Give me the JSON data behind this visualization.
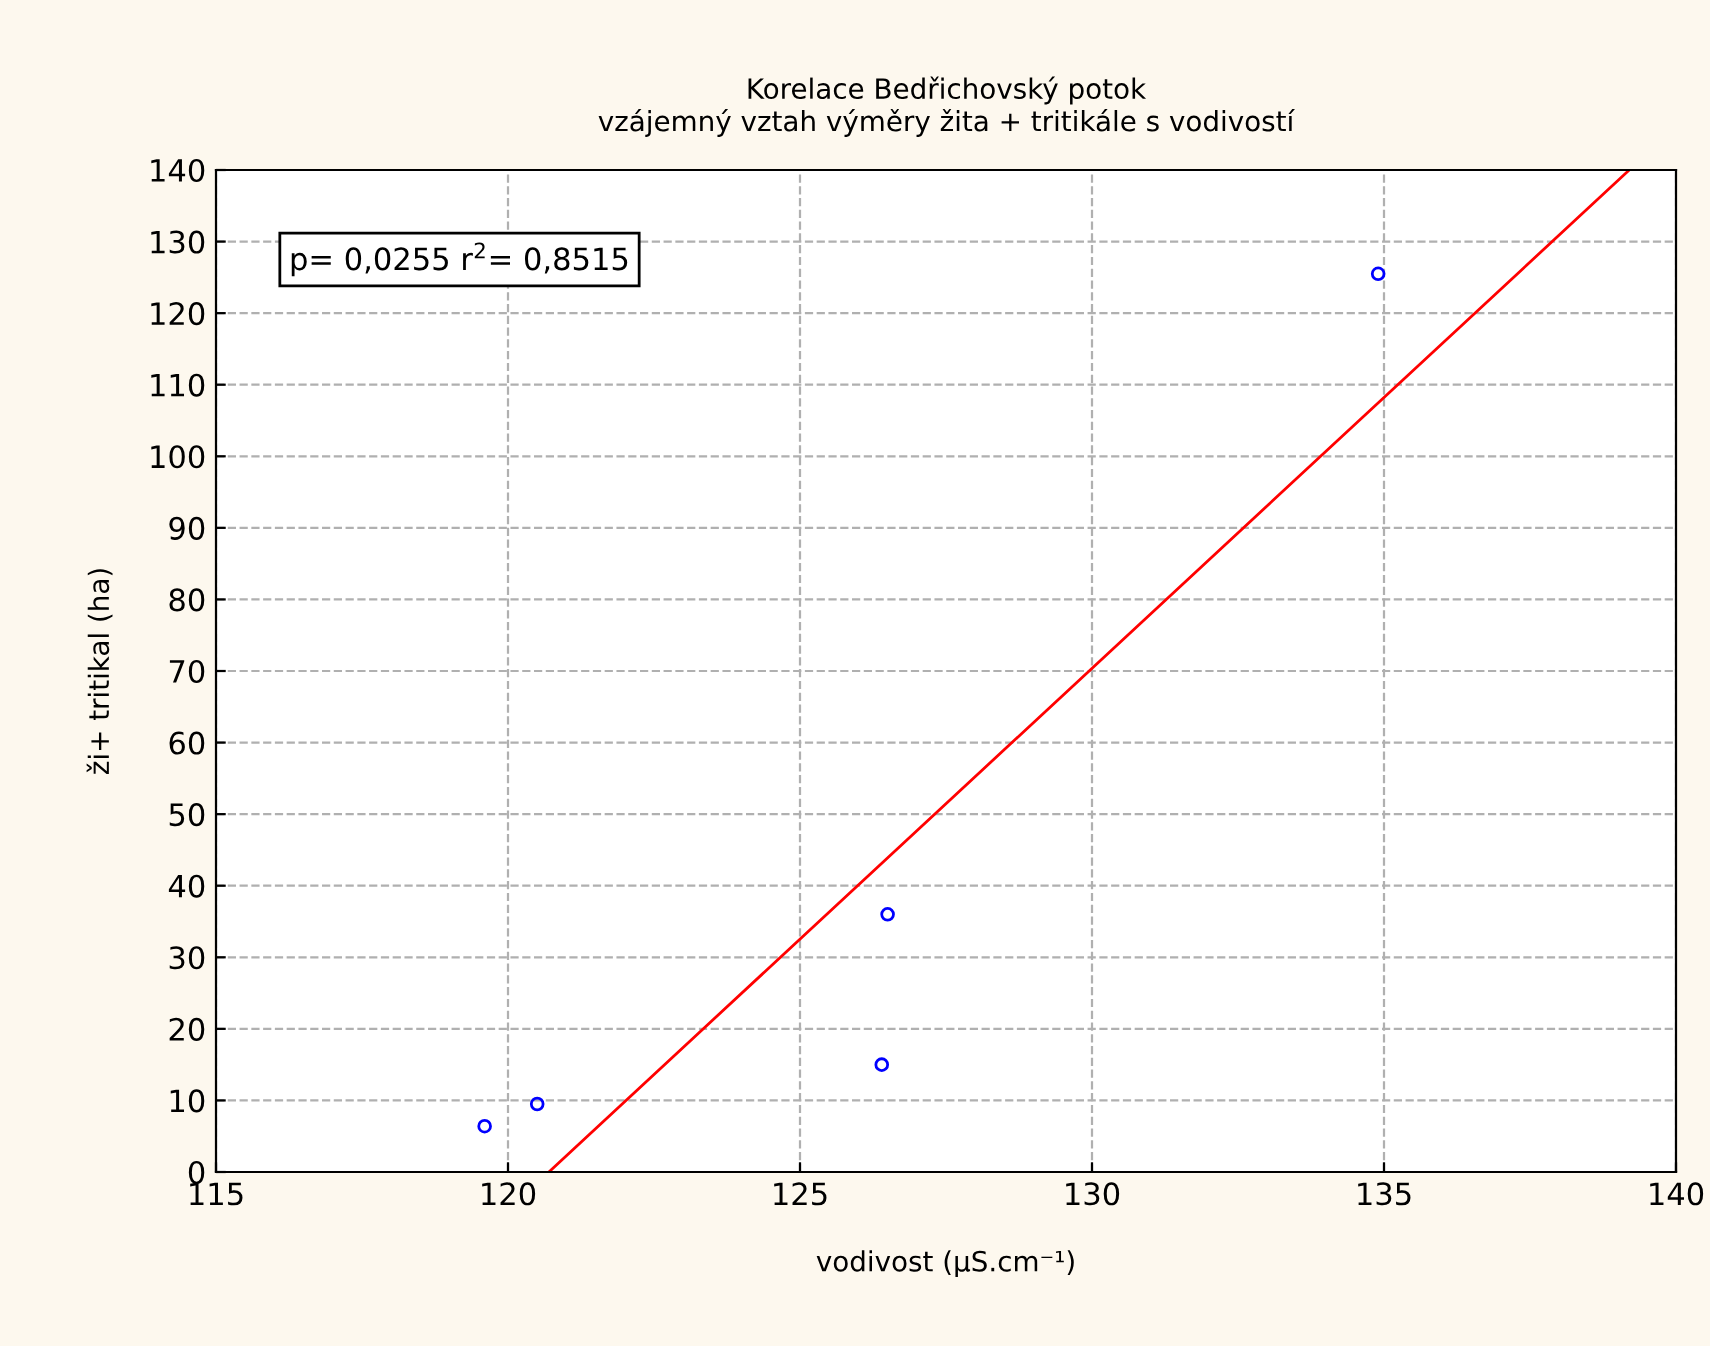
{
  "chart_data": {
    "type": "scatter",
    "title": "Korelace Bedřichovský potok\nvzájemný vztah výměry žita + tritikále s vodivostí",
    "xlabel": "vodivost (µS.cm⁻¹)",
    "ylabel": "ži+ tritikal (ha)",
    "series": [
      {
        "color": "#0000ff",
        "marker": "circle",
        "x": [
          119.6,
          120.5,
          126.4,
          126.5,
          134.9
        ],
        "values": [
          6.4,
          9.5,
          15,
          36,
          125.5
        ]
      },
      {
        "type": "line",
        "color": "#ff0000",
        "marker": "none",
        "x": [
          120.7,
          139.2
        ],
        "values": [
          0,
          140
        ]
      }
    ],
    "annotations": [
      "p= 0,0255 r$^{2}$= 0,8515"
    ],
    "xlim": [
      115,
      140
    ],
    "xticks": [
      115,
      120,
      125,
      130,
      135,
      140
    ],
    "ylim": [
      0,
      140
    ],
    "yticks": [
      0,
      10,
      20,
      30,
      40,
      50,
      60,
      70,
      80,
      90,
      100,
      110,
      120,
      130,
      140
    ],
    "grid": true,
    "legend": false
  }
}
